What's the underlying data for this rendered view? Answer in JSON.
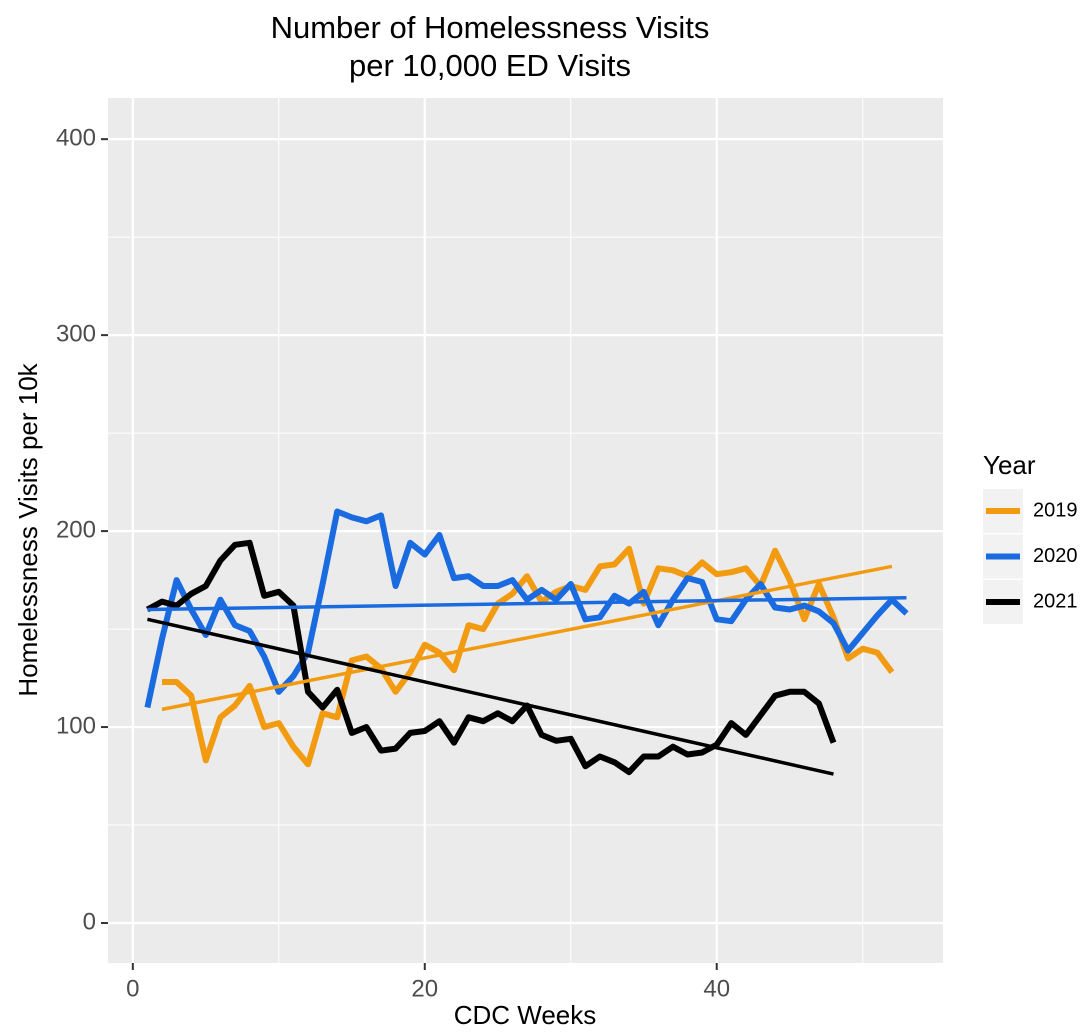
{
  "chart_data": {
    "type": "line",
    "title": [
      "Number of Homelessness Visits",
      "per 10,000 ED Visits"
    ],
    "x_label": "CDC Weeks",
    "y_label": "Homelessness Visits per 10k",
    "legend_title": "Year",
    "legend_position": "right",
    "grid": true,
    "xlim": [
      -1.7,
      55.5
    ],
    "ylim": [
      -20.4,
      421
    ],
    "xticks": [
      0,
      20,
      40
    ],
    "yticks": [
      0,
      100,
      200,
      300,
      400
    ],
    "series": [
      {
        "name": "2019",
        "color": "#f29b11",
        "x": [
          2,
          3,
          4,
          5,
          6,
          7,
          8,
          9,
          10,
          11,
          12,
          13,
          14,
          15,
          16,
          17,
          18,
          19,
          20,
          21,
          22,
          23,
          24,
          25,
          26,
          27,
          28,
          29,
          30,
          31,
          32,
          33,
          34,
          35,
          36,
          37,
          38,
          39,
          40,
          41,
          42,
          43,
          44,
          45,
          46,
          47,
          48,
          49,
          50,
          51,
          52
        ],
        "values": [
          123,
          123,
          116,
          83,
          105,
          111,
          121,
          100,
          102,
          90,
          81,
          107,
          105,
          134,
          136,
          130,
          118,
          128,
          142,
          138,
          129,
          152,
          150,
          163,
          168,
          177,
          164,
          169,
          172,
          170,
          182,
          183,
          191,
          163,
          181,
          180,
          177,
          184,
          178,
          179,
          181,
          172,
          190,
          175,
          155,
          173,
          156,
          135,
          140,
          138,
          128
        ],
        "trend": {
          "x": [
            2,
            52
          ],
          "values": [
            109,
            182
          ]
        }
      },
      {
        "name": "2020",
        "color": "#1a6be0",
        "x": [
          1,
          2,
          3,
          4,
          5,
          6,
          7,
          8,
          9,
          10,
          11,
          12,
          13,
          14,
          15,
          16,
          17,
          18,
          19,
          20,
          21,
          22,
          23,
          24,
          25,
          26,
          27,
          28,
          29,
          30,
          31,
          32,
          33,
          34,
          35,
          36,
          37,
          38,
          39,
          40,
          41,
          42,
          43,
          44,
          45,
          46,
          47,
          48,
          49,
          50,
          51,
          52,
          53
        ],
        "values": [
          110,
          145,
          175,
          160,
          147,
          165,
          152,
          149,
          136,
          118,
          126,
          138,
          173,
          210,
          207,
          205,
          208,
          172,
          194,
          188,
          198,
          176,
          177,
          172,
          172,
          175,
          165,
          170,
          165,
          173,
          155,
          156,
          167,
          163,
          169,
          152,
          165,
          176,
          174,
          155,
          154,
          165,
          173,
          161,
          160,
          162,
          159,
          153,
          139,
          148,
          157,
          165,
          158
        ],
        "trend": {
          "x": [
            1,
            53
          ],
          "values": [
            160,
            166
          ]
        }
      },
      {
        "name": "2021",
        "color": "#000000",
        "x": [
          1,
          2,
          3,
          4,
          5,
          6,
          7,
          8,
          9,
          10,
          11,
          12,
          13,
          14,
          15,
          16,
          17,
          18,
          19,
          20,
          21,
          22,
          23,
          24,
          25,
          26,
          27,
          28,
          29,
          30,
          31,
          32,
          33,
          34,
          35,
          36,
          37,
          38,
          39,
          40,
          41,
          42,
          43,
          44,
          45,
          46,
          47,
          48
        ],
        "values": [
          160,
          164,
          162,
          168,
          172,
          185,
          193,
          194,
          167,
          169,
          162,
          118,
          110,
          119,
          97,
          100,
          88,
          89,
          97,
          98,
          103,
          92,
          105,
          103,
          107,
          103,
          111,
          96,
          93,
          94,
          80,
          85,
          82,
          77,
          85,
          85,
          90,
          86,
          87,
          91,
          102,
          96,
          106,
          116,
          118,
          118,
          112,
          92
        ],
        "trend": {
          "x": [
            1,
            48
          ],
          "values": [
            155,
            76
          ]
        }
      }
    ]
  }
}
